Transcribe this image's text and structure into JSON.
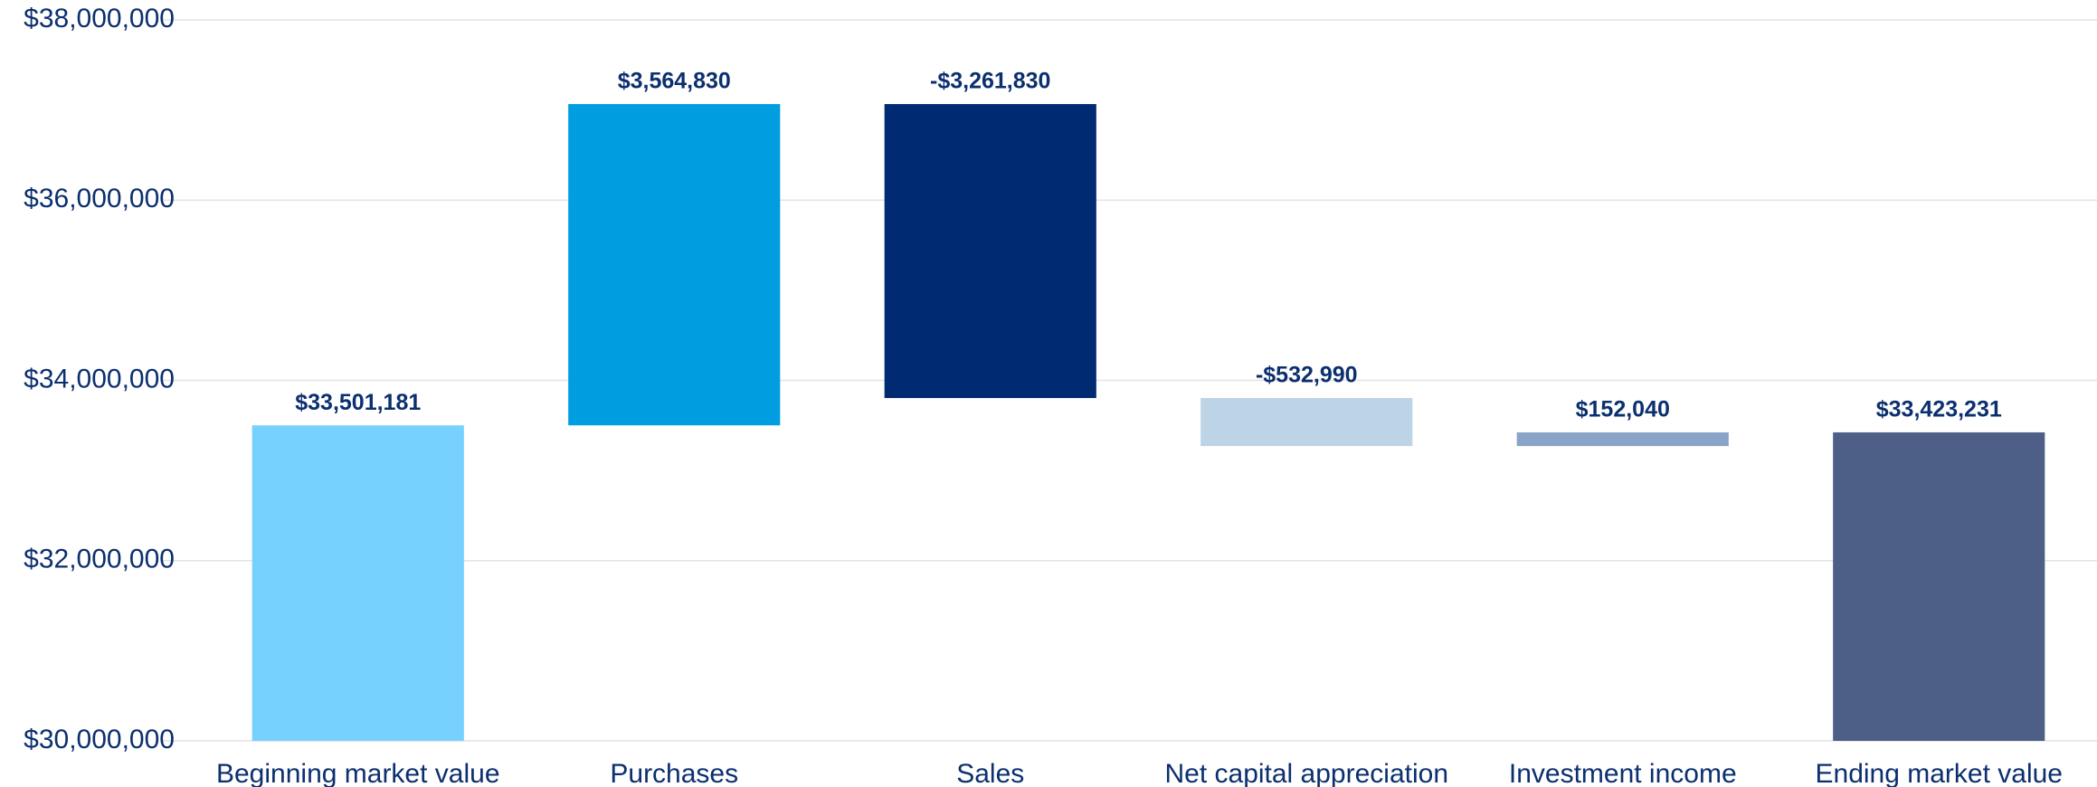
{
  "chart_data": {
    "type": "waterfall",
    "categories": [
      "Beginning market value",
      "Purchases",
      "Sales",
      "Net capital appreciation",
      "Investment income",
      "Ending market value"
    ],
    "values": [
      33501181,
      3564830,
      -3261830,
      -532990,
      152040,
      33423231
    ],
    "value_labels": [
      "$33,501,181",
      "$3,564,830",
      "-$3,261,830",
      "-$532,990",
      "$152,040",
      "$33,423,231"
    ],
    "colors": [
      "#76d1ff",
      "#009de0",
      "#002b73",
      "#bdd3e6",
      "#8aa3c9",
      "#4d5f86"
    ],
    "ylim": [
      30000000,
      38000000
    ],
    "yticks": [
      {
        "value": 30000000,
        "label": "$30,000,000"
      },
      {
        "value": 32000000,
        "label": "$32,000,000"
      },
      {
        "value": 34000000,
        "label": "$34,000,000"
      },
      {
        "value": 36000000,
        "label": "$36,000,000"
      },
      {
        "value": 38000000,
        "label": "$38,000,000"
      }
    ],
    "grid": true
  }
}
